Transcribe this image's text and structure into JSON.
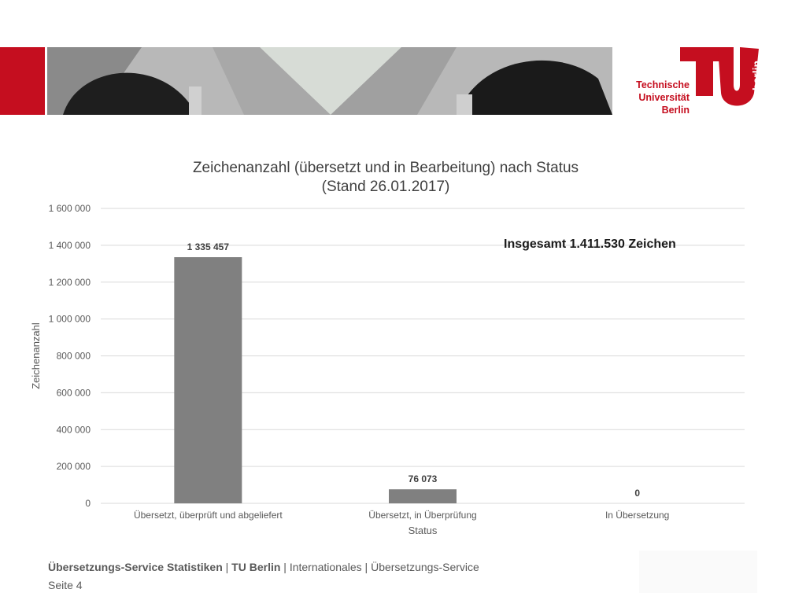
{
  "brand": {
    "accent": "#c50e1f",
    "logo_lines": [
      "Technische",
      "Universität",
      "Berlin"
    ],
    "logo_vertical": "berlin"
  },
  "chart_data": {
    "type": "bar",
    "title": "Zeichenanzahl (übersetzt und in Bearbeitung) nach Status",
    "subtitle": "(Stand 26.01.2017)",
    "xlabel": "Status",
    "ylabel": "Zeichenanzahl",
    "categories": [
      "Übersetzt, überprüft und abgeliefert",
      "Übersetzt, in Überprüfung",
      "In Übersetzung"
    ],
    "values": [
      1335457,
      76073,
      0
    ],
    "data_labels": [
      "1 335 457",
      "76 073",
      "0"
    ],
    "ylim": [
      0,
      1600000
    ],
    "yticks": [
      0,
      200000,
      400000,
      600000,
      800000,
      1000000,
      1200000,
      1400000,
      1600000
    ],
    "ytick_labels": [
      "0",
      "200 000",
      "400 000",
      "600 000",
      "800 000",
      "1 000 000",
      "1 200 000",
      "1 400 000",
      "1 600 000"
    ],
    "grid": true,
    "bar_color": "#808080",
    "annotation": "Insgesamt 1.411.530 Zeichen"
  },
  "footer": {
    "title_bold": "Übersetzungs-Service Statistiken",
    "sep1": " | ",
    "org_bold": "TU Berlin",
    "rest": " | Internationales | Übersetzungs-Service",
    "page": "Seite 4"
  }
}
